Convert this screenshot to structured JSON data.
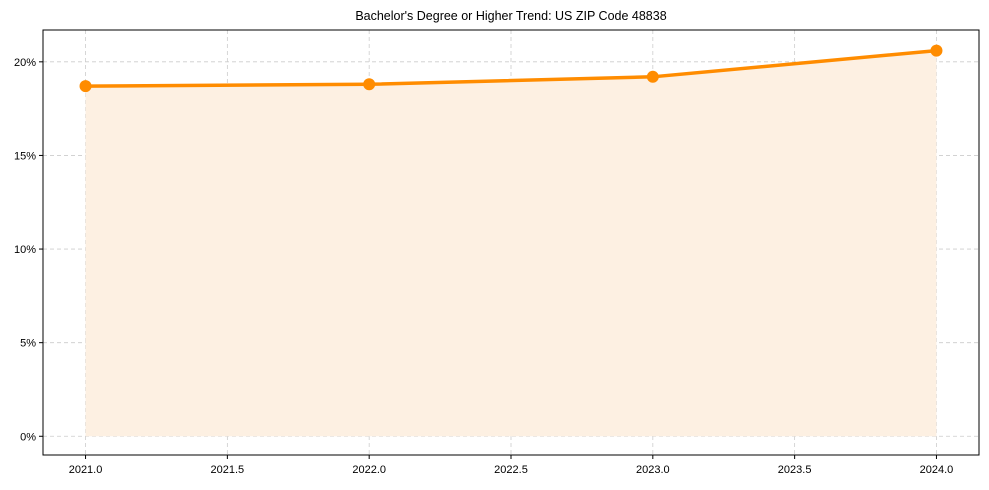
{
  "chart_data": {
    "type": "line",
    "title": "Bachelor's Degree or Higher Trend: US ZIP Code 48838",
    "xlabel": "",
    "ylabel": "",
    "x": [
      2021,
      2022,
      2023,
      2024
    ],
    "series": [
      {
        "name": "Bachelor's Degree or Higher",
        "values": [
          18.7,
          18.8,
          19.2,
          20.6
        ],
        "color": "#ff8c00",
        "fill": "#fdf0e2"
      }
    ],
    "xlim": [
      2020.85,
      2024.15
    ],
    "ylim": [
      -1.0,
      21.7
    ],
    "xticks": [
      2021.0,
      2021.5,
      2022.0,
      2022.5,
      2023.0,
      2023.5,
      2024.0
    ],
    "xtick_labels": [
      "2021.0",
      "2021.5",
      "2022.0",
      "2022.5",
      "2023.0",
      "2023.5",
      "2024.0"
    ],
    "yticks": [
      0,
      5,
      10,
      15,
      20
    ],
    "ytick_labels": [
      "0%",
      "5%",
      "10%",
      "15%",
      "20%"
    ],
    "grid": true,
    "grid_style": "dashed",
    "legend": null
  }
}
